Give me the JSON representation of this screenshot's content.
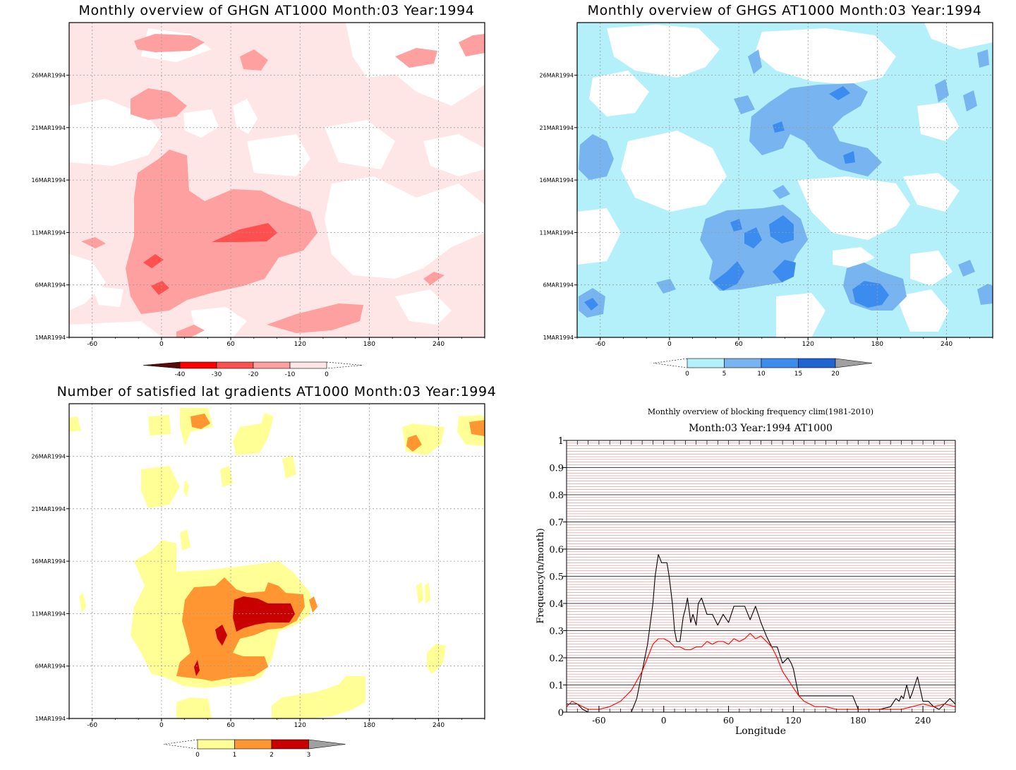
{
  "chart_data": [
    {
      "type": "heatmap",
      "title": "Monthly overview of GHGN AT1000 Month:03 Year:1994",
      "x_ticks": [
        "-60",
        "0",
        "60",
        "120",
        "180",
        "240"
      ],
      "y_ticks": [
        "1MAR1994",
        "6MAR1994",
        "11MAR1994",
        "16MAR1994",
        "21MAR1994",
        "26MAR1994"
      ],
      "xlim": [
        -80,
        280
      ],
      "colorbar": {
        "labels": [
          "-40",
          "-30",
          "-20",
          "-10",
          "0"
        ],
        "colors": [
          "#5a0a0a",
          "#ff0000",
          "#ff5050",
          "#ffa0a0",
          "#ffe6e6"
        ]
      }
    },
    {
      "type": "heatmap",
      "title": "Monthly overview of GHGS AT1000 Month:03 Year:1994",
      "x_ticks": [
        "-60",
        "0",
        "60",
        "120",
        "180",
        "240"
      ],
      "y_ticks": [
        "1MAR1994",
        "6MAR1994",
        "11MAR1994",
        "16MAR1994",
        "21MAR1994",
        "26MAR1994"
      ],
      "xlim": [
        -80,
        280
      ],
      "colorbar": {
        "labels": [
          "0",
          "5",
          "10",
          "15",
          "20"
        ],
        "colors": [
          "#b4f0fa",
          "#78b4f0",
          "#3c8cf0",
          "#1e64d2",
          "#a0a0a0"
        ]
      }
    },
    {
      "type": "heatmap",
      "title": "Number of satisfied lat gradients AT1000 Month:03 Year:1994",
      "x_ticks": [
        "-60",
        "0",
        "60",
        "120",
        "180",
        "240"
      ],
      "y_ticks": [
        "1MAR1994",
        "6MAR1994",
        "11MAR1994",
        "16MAR1994",
        "21MAR1994",
        "26MAR1994"
      ],
      "xlim": [
        -80,
        280
      ],
      "colorbar": {
        "labels": [
          "0",
          "1",
          "2",
          "3"
        ],
        "colors": [
          "#ffff96",
          "#ff9632",
          "#c80000",
          "#a0a0a0"
        ]
      }
    },
    {
      "type": "line",
      "title": "Monthly overview of blocking frequency clim(1981-2010)",
      "subtitle": "Month:03 Year:1994  AT1000",
      "xlabel": "Longitude",
      "ylabel": "Frequency(n/month)",
      "xlim": [
        -90,
        270
      ],
      "ylim": [
        0,
        1
      ],
      "x_ticks": [
        "-60",
        "0",
        "60",
        "120",
        "180",
        "240"
      ],
      "y_ticks": [
        "0",
        "0.1",
        "0.2",
        "0.3",
        "0.4",
        "0.5",
        "0.6",
        "0.7",
        "0.8",
        "0.9",
        "1"
      ],
      "series": [
        {
          "color": "#000000",
          "x": [
            -90,
            -80,
            -75,
            -70,
            -60,
            -50,
            -40,
            -35,
            -30,
            -25,
            -20,
            -15,
            -10,
            -8,
            -5,
            -2,
            0,
            3,
            5,
            8,
            10,
            12,
            15,
            18,
            20,
            22,
            25,
            27,
            30,
            32,
            35,
            40,
            45,
            50,
            55,
            60,
            65,
            70,
            75,
            80,
            85,
            90,
            95,
            100,
            105,
            110,
            115,
            118,
            120,
            125,
            130,
            135,
            140,
            150,
            160,
            170,
            175,
            180,
            190,
            200,
            210,
            215,
            218,
            220,
            222,
            225,
            228,
            230,
            235,
            240,
            245,
            250,
            255,
            260,
            265,
            270
          ],
          "y": [
            0.03,
            0.03,
            0.01,
            0,
            0,
            0,
            0,
            0,
            0,
            0.05,
            0.15,
            0.25,
            0.4,
            0.5,
            0.58,
            0.55,
            0.55,
            0.55,
            0.5,
            0.4,
            0.3,
            0.26,
            0.26,
            0.35,
            0.38,
            0.42,
            0.33,
            0.36,
            0.32,
            0.4,
            0.42,
            0.36,
            0.36,
            0.32,
            0.36,
            0.33,
            0.39,
            0.39,
            0.39,
            0.34,
            0.39,
            0.33,
            0.28,
            0.24,
            0.24,
            0.18,
            0.2,
            0.18,
            0.16,
            0.06,
            0.06,
            0.06,
            0.06,
            0.06,
            0.06,
            0.06,
            0.06,
            0.01,
            0.01,
            0.01,
            0.02,
            0.05,
            0.04,
            0.06,
            0.05,
            0.1,
            0.05,
            0.07,
            0.13,
            0.04,
            0.04,
            0.02,
            0.01,
            0.03,
            0.05,
            0.03
          ]
        },
        {
          "color": "#ff0000",
          "x": [
            -90,
            -85,
            -80,
            -70,
            -60,
            -50,
            -40,
            -30,
            -20,
            -15,
            -10,
            -5,
            0,
            5,
            10,
            15,
            20,
            25,
            30,
            35,
            40,
            45,
            50,
            55,
            60,
            65,
            70,
            75,
            80,
            85,
            90,
            95,
            100,
            105,
            110,
            115,
            120,
            125,
            130,
            140,
            150,
            160,
            170,
            180,
            190,
            200,
            210,
            220,
            230,
            240,
            250,
            260,
            270
          ],
          "y": [
            0.02,
            0.04,
            0.03,
            0.01,
            0.01,
            0.02,
            0.04,
            0.08,
            0.15,
            0.2,
            0.25,
            0.27,
            0.27,
            0.26,
            0.24,
            0.24,
            0.23,
            0.23,
            0.24,
            0.24,
            0.26,
            0.25,
            0.26,
            0.26,
            0.25,
            0.27,
            0.26,
            0.27,
            0.29,
            0.27,
            0.28,
            0.26,
            0.24,
            0.2,
            0.15,
            0.12,
            0.09,
            0.06,
            0.04,
            0.02,
            0.02,
            0.01,
            0.01,
            0.01,
            0.01,
            0.01,
            0.01,
            0.01,
            0.02,
            0.03,
            0.02,
            0.03,
            0.02
          ]
        }
      ]
    }
  ]
}
